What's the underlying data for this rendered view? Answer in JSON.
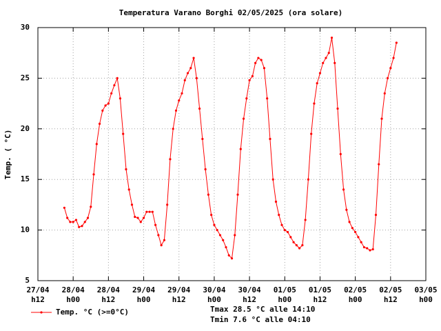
{
  "chart_data": {
    "type": "line",
    "title": "Temperatura Varano Borghi 02/05/2025 (ora solare)",
    "y_label": "Temp. ( °C)",
    "annotations": [
      "Tmax 28.5 °C alle 14:10",
      "Tmin 7.6 °C alle 04:10"
    ],
    "grid": true,
    "legend": "bottom-left",
    "xlim": [
      "2025-04-27T12:00",
      "2025-05-03T00:00"
    ],
    "xticks": [
      {
        "value": "2025-04-27T12:00",
        "label": "27/04 h12"
      },
      {
        "value": "2025-04-28T00:00",
        "label": "28/04 h00"
      },
      {
        "value": "2025-04-28T12:00",
        "label": "28/04 h12"
      },
      {
        "value": "2025-04-29T00:00",
        "label": "29/04 h00"
      },
      {
        "value": "2025-04-29T12:00",
        "label": "29/04 h12"
      },
      {
        "value": "2025-04-30T00:00",
        "label": "30/04 h00"
      },
      {
        "value": "2025-04-30T12:00",
        "label": "30/04 h12"
      },
      {
        "value": "2025-05-01T00:00",
        "label": "01/05 h00"
      },
      {
        "value": "2025-05-01T12:00",
        "label": "01/05 h12"
      },
      {
        "value": "2025-05-02T00:00",
        "label": "02/05 h00"
      },
      {
        "value": "2025-05-02T12:00",
        "label": "02/05 h12"
      },
      {
        "value": "2025-05-03T00:00",
        "label": "03/05 h00"
      }
    ],
    "ylim": [
      5,
      30
    ],
    "yticks": [
      5,
      10,
      15,
      20,
      25,
      30
    ],
    "x": [
      "2025-04-27T21:00",
      "2025-04-27T22:00",
      "2025-04-27T23:00",
      "2025-04-28T00:00",
      "2025-04-28T01:00",
      "2025-04-28T02:00",
      "2025-04-28T03:00",
      "2025-04-28T04:00",
      "2025-04-28T05:00",
      "2025-04-28T06:00",
      "2025-04-28T07:00",
      "2025-04-28T08:00",
      "2025-04-28T09:00",
      "2025-04-28T10:00",
      "2025-04-28T11:00",
      "2025-04-28T12:00",
      "2025-04-28T13:00",
      "2025-04-28T14:00",
      "2025-04-28T15:00",
      "2025-04-28T16:00",
      "2025-04-28T17:00",
      "2025-04-28T18:00",
      "2025-04-28T19:00",
      "2025-04-28T20:00",
      "2025-04-28T21:00",
      "2025-04-28T22:00",
      "2025-04-28T23:00",
      "2025-04-29T00:00",
      "2025-04-29T01:00",
      "2025-04-29T02:00",
      "2025-04-29T03:00",
      "2025-04-29T04:00",
      "2025-04-29T05:00",
      "2025-04-29T06:00",
      "2025-04-29T07:00",
      "2025-04-29T08:00",
      "2025-04-29T09:00",
      "2025-04-29T10:00",
      "2025-04-29T11:00",
      "2025-04-29T12:00",
      "2025-04-29T13:00",
      "2025-04-29T14:00",
      "2025-04-29T15:00",
      "2025-04-29T16:00",
      "2025-04-29T17:00",
      "2025-04-29T18:00",
      "2025-04-29T19:00",
      "2025-04-29T20:00",
      "2025-04-29T21:00",
      "2025-04-29T22:00",
      "2025-04-29T23:00",
      "2025-04-30T00:00",
      "2025-04-30T01:00",
      "2025-04-30T02:00",
      "2025-04-30T03:00",
      "2025-04-30T04:00",
      "2025-04-30T05:00",
      "2025-04-30T06:00",
      "2025-04-30T07:00",
      "2025-04-30T08:00",
      "2025-04-30T09:00",
      "2025-04-30T10:00",
      "2025-04-30T11:00",
      "2025-04-30T12:00",
      "2025-04-30T13:00",
      "2025-04-30T14:00",
      "2025-04-30T15:00",
      "2025-04-30T16:00",
      "2025-04-30T17:00",
      "2025-04-30T18:00",
      "2025-04-30T19:00",
      "2025-04-30T20:00",
      "2025-04-30T21:00",
      "2025-04-30T22:00",
      "2025-04-30T23:00",
      "2025-05-01T00:00",
      "2025-05-01T01:00",
      "2025-05-01T02:00",
      "2025-05-01T03:00",
      "2025-05-01T04:00",
      "2025-05-01T05:00",
      "2025-05-01T06:00",
      "2025-05-01T07:00",
      "2025-05-01T08:00",
      "2025-05-01T09:00",
      "2025-05-01T10:00",
      "2025-05-01T11:00",
      "2025-05-01T12:00",
      "2025-05-01T13:00",
      "2025-05-01T14:00",
      "2025-05-01T15:00",
      "2025-05-01T16:00",
      "2025-05-01T17:00",
      "2025-05-01T18:00",
      "2025-05-01T19:00",
      "2025-05-01T20:00",
      "2025-05-01T21:00",
      "2025-05-01T22:00",
      "2025-05-01T23:00",
      "2025-05-02T00:00",
      "2025-05-02T01:00",
      "2025-05-02T02:00",
      "2025-05-02T03:00",
      "2025-05-02T04:00",
      "2025-05-02T05:00",
      "2025-05-02T06:00",
      "2025-05-02T07:00",
      "2025-05-02T08:00",
      "2025-05-02T09:00",
      "2025-05-02T10:00",
      "2025-05-02T11:00",
      "2025-05-02T12:00",
      "2025-05-02T13:00",
      "2025-05-02T14:00"
    ],
    "series": [
      {
        "name": "Temp. °C (>=0°C)",
        "color": "#ff0000",
        "values": [
          12.2,
          11.2,
          10.8,
          10.8,
          11.0,
          10.3,
          10.4,
          10.8,
          11.2,
          12.3,
          15.5,
          18.5,
          20.5,
          21.8,
          22.3,
          22.5,
          23.5,
          24.3,
          25.0,
          23.0,
          19.5,
          16.0,
          14.0,
          12.5,
          11.3,
          11.2,
          10.8,
          11.2,
          11.8,
          11.8,
          11.8,
          10.5,
          9.5,
          8.5,
          9.0,
          12.5,
          17.0,
          20.0,
          21.8,
          22.8,
          23.5,
          24.8,
          25.5,
          26.0,
          27.0,
          25.0,
          22.0,
          19.0,
          16.0,
          13.5,
          11.5,
          10.5,
          10.0,
          9.5,
          9.0,
          8.3,
          7.5,
          7.2,
          9.5,
          13.5,
          18.0,
          21.0,
          23.0,
          24.8,
          25.2,
          26.5,
          27.0,
          26.8,
          26.0,
          23.0,
          19.0,
          15.0,
          12.8,
          11.5,
          10.5,
          10.0,
          9.8,
          9.3,
          8.8,
          8.5,
          8.2,
          8.5,
          11.0,
          15.0,
          19.5,
          22.5,
          24.5,
          25.5,
          26.5,
          27.0,
          27.5,
          29.0,
          26.5,
          22.0,
          17.5,
          14.0,
          12.0,
          10.8,
          10.2,
          9.8,
          9.3,
          8.8,
          8.3,
          8.2,
          8.0,
          8.1,
          11.5,
          16.5,
          21.0,
          23.5,
          25.0,
          26.0,
          27.0,
          28.5
        ]
      }
    ]
  }
}
